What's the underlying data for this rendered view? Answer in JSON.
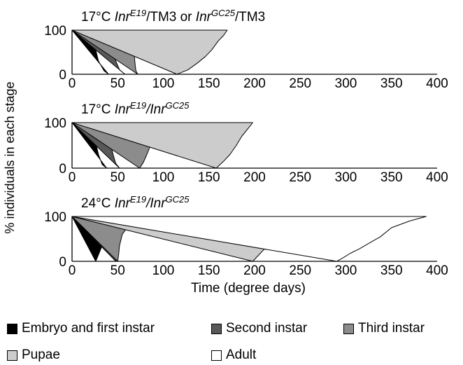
{
  "chart_data": [
    {
      "type": "area",
      "title_prefix": "17°C ",
      "title_parts": [
        {
          "text": "Inr",
          "style": "italic"
        },
        {
          "text": "E19",
          "style": "italic-sup"
        },
        {
          "text": "/TM3 or ",
          "style": "normal"
        },
        {
          "text": "Inr",
          "style": "italic"
        },
        {
          "text": "GC25",
          "style": "italic-sup"
        },
        {
          "text": "/TM3",
          "style": "normal"
        }
      ],
      "xlim": [
        0,
        400
      ],
      "ylim": [
        0,
        100
      ],
      "x_ticks": [
        "0",
        "50",
        "100",
        "150",
        "200",
        "250",
        "300",
        "350",
        "400"
      ],
      "y_ticks": [
        "0",
        "100"
      ],
      "series": [
        {
          "name": "Embryo and first instar",
          "color": "#000000",
          "x": [
            0,
            22,
            24,
            26,
            29,
            35,
            40
          ],
          "y": [
            100,
            100,
            80,
            55,
            30,
            8,
            0
          ]
        },
        {
          "name": "Second instar",
          "color": "#595959",
          "x": [
            0,
            41,
            43,
            45,
            48,
            52,
            58
          ],
          "y": [
            100,
            100,
            80,
            55,
            30,
            10,
            0
          ]
        },
        {
          "name": "Third instar",
          "color": "#8c8c8c",
          "x": [
            0,
            66,
            67,
            68,
            69,
            70,
            72
          ],
          "y": [
            100,
            100,
            80,
            50,
            25,
            8,
            0
          ]
        },
        {
          "name": "Pupae",
          "color": "#cccccc",
          "x": [
            0,
            170,
            166,
            160,
            153,
            146,
            137,
            127,
            115
          ],
          "y": [
            100,
            100,
            88,
            75,
            55,
            40,
            25,
            10,
            0
          ]
        }
      ]
    },
    {
      "type": "area",
      "title_prefix": "17°C ",
      "title_parts": [
        {
          "text": "Inr",
          "style": "italic"
        },
        {
          "text": "E19",
          "style": "italic-sup"
        },
        {
          "text": "/",
          "style": "italic"
        },
        {
          "text": "Inr",
          "style": "italic"
        },
        {
          "text": "GC25",
          "style": "italic-sup"
        }
      ],
      "xlim": [
        0,
        400
      ],
      "ylim": [
        0,
        100
      ],
      "x_ticks": [
        "0",
        "50",
        "100",
        "150",
        "200",
        "250",
        "300",
        "350",
        "400"
      ],
      "y_ticks": [
        "0",
        "100"
      ],
      "series": [
        {
          "name": "Embryo and first instar",
          "color": "#000000",
          "x": [
            0,
            22,
            24,
            26,
            29,
            33,
            38
          ],
          "y": [
            100,
            100,
            80,
            55,
            30,
            8,
            0
          ]
        },
        {
          "name": "Second instar",
          "color": "#595959",
          "x": [
            0,
            37,
            40,
            42,
            45,
            48,
            52
          ],
          "y": [
            100,
            100,
            80,
            55,
            30,
            10,
            0
          ]
        },
        {
          "name": "Third instar",
          "color": "#8c8c8c",
          "x": [
            0,
            97,
            94,
            90,
            86,
            82,
            78,
            74
          ],
          "y": [
            100,
            100,
            85,
            70,
            50,
            30,
            12,
            0
          ]
        },
        {
          "name": "Pupae",
          "color": "#cccccc",
          "x": [
            0,
            198,
            192,
            186,
            180,
            173,
            166,
            158
          ],
          "y": [
            100,
            100,
            85,
            70,
            50,
            30,
            15,
            0
          ]
        }
      ]
    },
    {
      "type": "area",
      "title_prefix": "24°C ",
      "title_parts": [
        {
          "text": "Inr",
          "style": "italic"
        },
        {
          "text": "E19",
          "style": "italic-sup"
        },
        {
          "text": "/",
          "style": "italic"
        },
        {
          "text": "Inr",
          "style": "italic"
        },
        {
          "text": "GC25",
          "style": "italic-sup"
        }
      ],
      "xlim": [
        0,
        400
      ],
      "ylim": [
        0,
        100
      ],
      "x_ticks": [
        "0",
        "50",
        "100",
        "150",
        "200",
        "250",
        "300",
        "350",
        "400"
      ],
      "y_ticks": [
        "0",
        "100"
      ],
      "series": [
        {
          "name": "Embryo and first instar",
          "color": "#000000",
          "x": [
            0,
            43,
            40,
            37,
            34,
            30,
            26
          ],
          "y": [
            100,
            100,
            80,
            60,
            40,
            20,
            0
          ]
        },
        {
          "name": "Second instar",
          "color": "#595959",
          "x": [
            0,
            62,
            58,
            54,
            51,
            49,
            48
          ],
          "y": [
            100,
            100,
            85,
            60,
            35,
            15,
            0
          ]
        },
        {
          "name": "Third instar",
          "color": "#8c8c8c",
          "x": [
            0,
            98,
            62,
            55,
            52,
            51,
            50
          ],
          "y": [
            100,
            100,
            80,
            60,
            35,
            15,
            0
          ]
        },
        {
          "name": "Pupae",
          "color": "#cccccc",
          "x": [
            0,
            248,
            240,
            230,
            222,
            212,
            205,
            198
          ],
          "y": [
            100,
            100,
            85,
            65,
            45,
            30,
            15,
            0
          ]
        },
        {
          "name": "Adult",
          "color": "#ffffff",
          "x": [
            0,
            388,
            370,
            350,
            338,
            325,
            315,
            305,
            297,
            290
          ],
          "y": [
            100,
            100,
            90,
            75,
            55,
            40,
            28,
            18,
            8,
            0
          ]
        }
      ]
    }
  ],
  "ylabel": "% individuals in each stage",
  "xlabel": "Time (degree days)",
  "legend": [
    {
      "label": "Embryo and first instar",
      "color": "#000000"
    },
    {
      "label": "Second instar",
      "color": "#595959"
    },
    {
      "label": "Third instar",
      "color": "#8c8c8c"
    },
    {
      "label": "Pupae",
      "color": "#cccccc"
    },
    {
      "label": "Adult",
      "color": "#ffffff"
    }
  ]
}
